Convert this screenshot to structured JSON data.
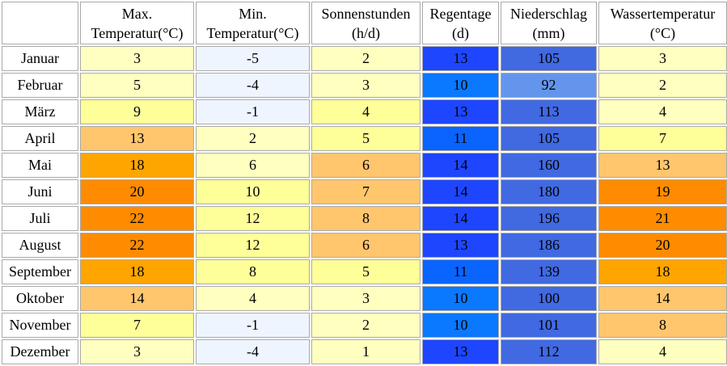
{
  "columns": [
    {
      "line1": "",
      "line2": ""
    },
    {
      "line1": "Max.",
      "line2": "Temperatur(°C)"
    },
    {
      "line1": "Min.",
      "line2": "Temperatur(°C)"
    },
    {
      "line1": "Sonnenstunden",
      "line2": "(h/d)"
    },
    {
      "line1": "Regentage",
      "line2": "(d)"
    },
    {
      "line1": "Niederschlag",
      "line2": "(mm)"
    },
    {
      "line1": "Wassertemperatur",
      "line2": "(°C)"
    }
  ],
  "rows": [
    {
      "month": "Januar",
      "max": "3",
      "min": "-5",
      "sun": "2",
      "rain_days": "13",
      "precip": "105",
      "water": "3"
    },
    {
      "month": "Februar",
      "max": "5",
      "min": "-4",
      "sun": "3",
      "rain_days": "10",
      "precip": "92",
      "water": "2"
    },
    {
      "month": "März",
      "max": "9",
      "min": "-1",
      "sun": "4",
      "rain_days": "13",
      "precip": "113",
      "water": "4"
    },
    {
      "month": "April",
      "max": "13",
      "min": "2",
      "sun": "5",
      "rain_days": "11",
      "precip": "105",
      "water": "7"
    },
    {
      "month": "Mai",
      "max": "18",
      "min": "6",
      "sun": "6",
      "rain_days": "14",
      "precip": "160",
      "water": "13"
    },
    {
      "month": "Juni",
      "max": "20",
      "min": "10",
      "sun": "7",
      "rain_days": "14",
      "precip": "180",
      "water": "19"
    },
    {
      "month": "Juli",
      "max": "22",
      "min": "12",
      "sun": "8",
      "rain_days": "14",
      "precip": "196",
      "water": "21"
    },
    {
      "month": "August",
      "max": "22",
      "min": "12",
      "sun": "6",
      "rain_days": "13",
      "precip": "186",
      "water": "20"
    },
    {
      "month": "September",
      "max": "18",
      "min": "8",
      "sun": "5",
      "rain_days": "11",
      "precip": "139",
      "water": "18"
    },
    {
      "month": "Oktober",
      "max": "14",
      "min": "4",
      "sun": "3",
      "rain_days": "10",
      "precip": "100",
      "water": "14"
    },
    {
      "month": "November",
      "max": "7",
      "min": "-1",
      "sun": "2",
      "rain_days": "10",
      "precip": "101",
      "water": "8"
    },
    {
      "month": "Dezember",
      "max": "3",
      "min": "-4",
      "sun": "1",
      "rain_days": "13",
      "precip": "112",
      "water": "4"
    }
  ],
  "colors": {
    "max": [
      "#ffffc0",
      "#ffffc0",
      "#ffff99",
      "#ffc66e",
      "#ffa500",
      "#ff8c00",
      "#ff8c00",
      "#ff8c00",
      "#ffa500",
      "#ffc66e",
      "#ffff99",
      "#ffffc0"
    ],
    "min": [
      "#eef5ff",
      "#eef5ff",
      "#eef5ff",
      "#ffffc0",
      "#ffffc0",
      "#ffff99",
      "#ffff99",
      "#ffff99",
      "#ffff99",
      "#ffffc0",
      "#eef5ff",
      "#eef5ff"
    ],
    "sun": [
      "#ffffc0",
      "#ffffc0",
      "#ffff99",
      "#ffff99",
      "#ffc66e",
      "#ffc66e",
      "#ffc66e",
      "#ffc66e",
      "#ffff99",
      "#ffffc0",
      "#ffffc0",
      "#ffffc0"
    ],
    "rain_days": [
      "#1e46ff",
      "#0a78ff",
      "#1e46ff",
      "#0a64ff",
      "#1e46ff",
      "#1e46ff",
      "#1e46ff",
      "#1e46ff",
      "#0a64ff",
      "#0a78ff",
      "#0a78ff",
      "#1e46ff"
    ],
    "precip": [
      "#4169e1",
      "#6495ed",
      "#4169e1",
      "#4169e1",
      "#4169e1",
      "#4169e1",
      "#4169e1",
      "#4169e1",
      "#4169e1",
      "#4169e1",
      "#4169e1",
      "#4169e1"
    ],
    "water": [
      "#ffffc0",
      "#ffffc0",
      "#ffffc0",
      "#ffff99",
      "#ffc66e",
      "#ff8c00",
      "#ff8c00",
      "#ff8c00",
      "#ffa500",
      "#ffc66e",
      "#ffc66e",
      "#ffffc0"
    ]
  }
}
